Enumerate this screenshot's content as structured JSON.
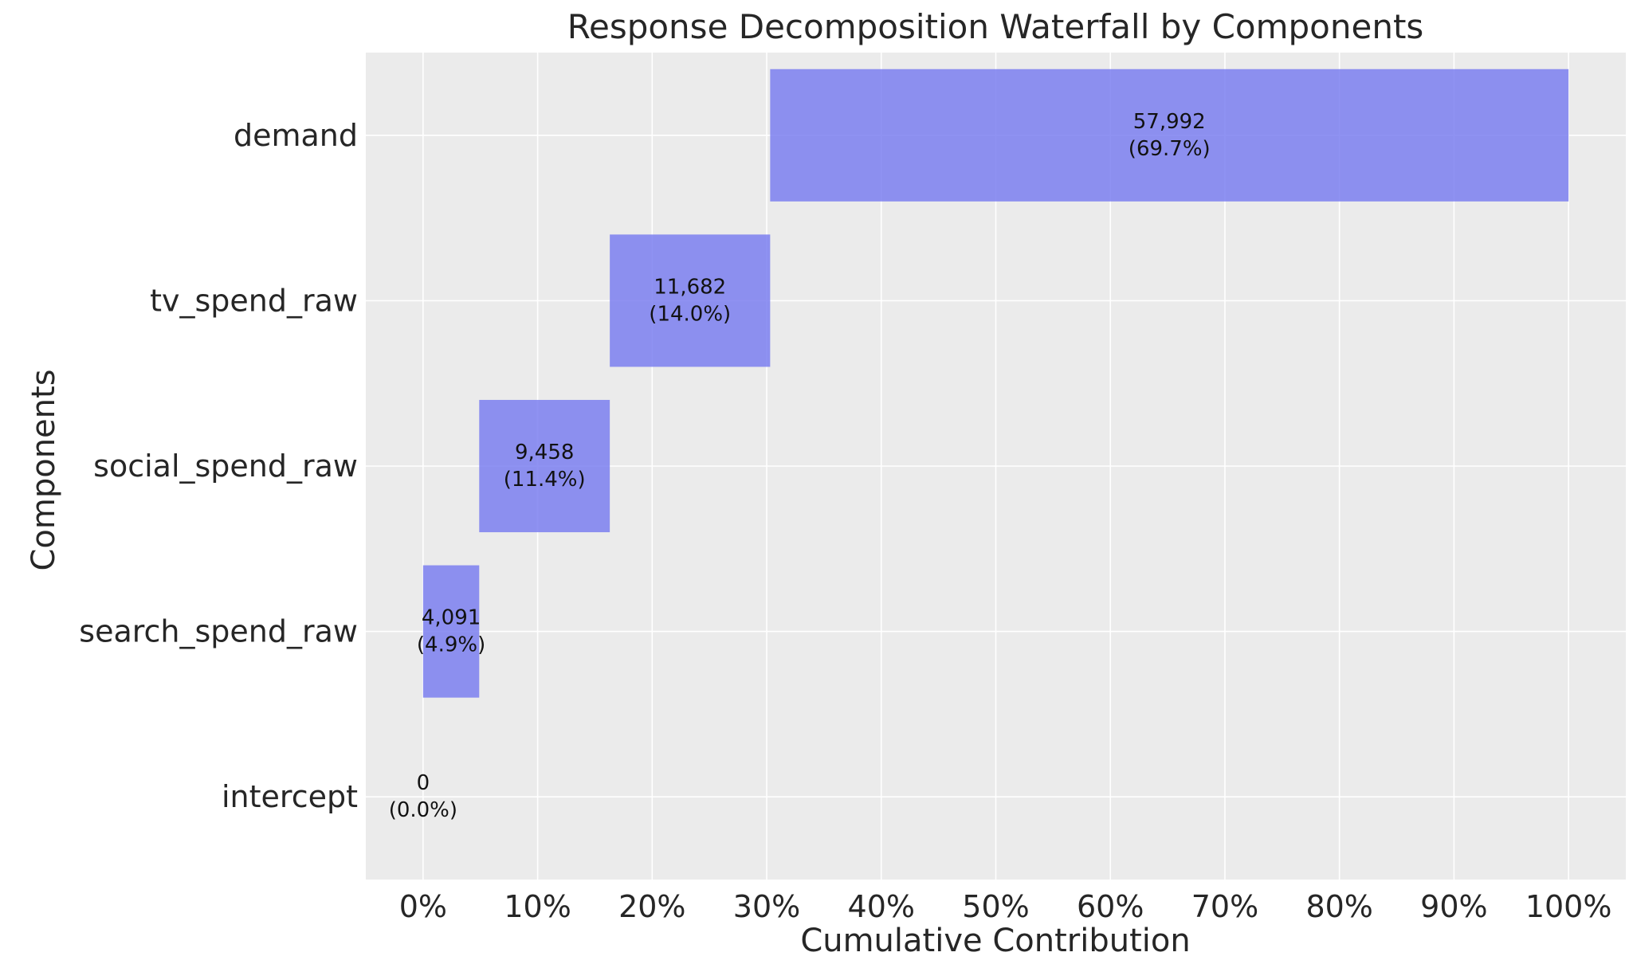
{
  "chart_data": {
    "type": "bar",
    "orientation": "horizontal",
    "subtype": "waterfall",
    "title": "Response Decomposition Waterfall by Components",
    "xlabel": "Cumulative Contribution",
    "ylabel": "Components",
    "xlim": [
      -5,
      105
    ],
    "xticks": [
      0,
      10,
      20,
      30,
      40,
      50,
      60,
      70,
      80,
      90,
      100
    ],
    "xtick_labels": [
      "0%",
      "10%",
      "20%",
      "30%",
      "40%",
      "50%",
      "60%",
      "70%",
      "80%",
      "90%",
      "100%"
    ],
    "categories": [
      "intercept",
      "search_spend_raw",
      "social_spend_raw",
      "tv_spend_raw",
      "demand"
    ],
    "values": [
      0,
      4091,
      9458,
      11682,
      57992
    ],
    "percentages": [
      0.0,
      4.9,
      11.4,
      14.0,
      69.7
    ],
    "value_labels": [
      "0",
      "4,091",
      "9,458",
      "11,682",
      "57,992"
    ],
    "percent_labels": [
      "(0.0%)",
      "(4.9%)",
      "(11.4%)",
      "(14.0%)",
      "(69.7%)"
    ],
    "grid": true,
    "colors": {
      "background": "#ebebeb",
      "grid": "#ffffff",
      "bar": "#7b7ff0",
      "text": "#262626"
    }
  }
}
